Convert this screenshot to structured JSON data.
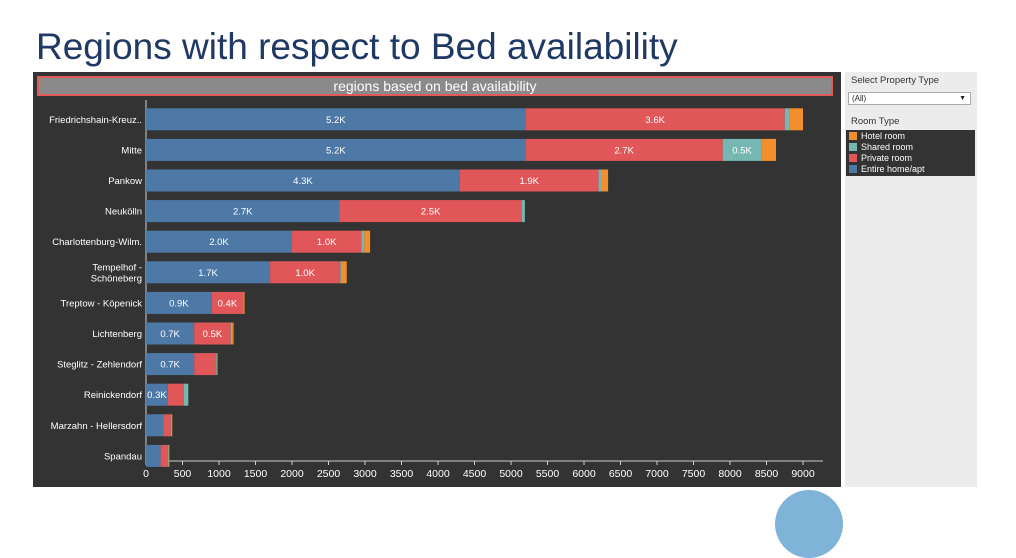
{
  "slide_title": "Regions with respect to Bed availability",
  "filter": {
    "label": "Select Property Type",
    "value": "(All)"
  },
  "legend_title": "Room Type",
  "colors": {
    "entire": "#4e79a7",
    "private": "#e15759",
    "shared": "#76b7b2",
    "hotel": "#f28e2b"
  },
  "chart_data": {
    "type": "bar",
    "orientation": "horizontal",
    "stacked": true,
    "title": "regions based on bed availability",
    "xlim": [
      0,
      9000
    ],
    "xticks": [
      0,
      500,
      1000,
      1500,
      2000,
      2500,
      3000,
      3500,
      4000,
      4500,
      5000,
      5500,
      6000,
      6500,
      7000,
      7500,
      8000,
      8500,
      9000
    ],
    "categories": [
      "Friedrichshain-Kreuz..",
      "Mitte",
      "Pankow",
      "Neukölln",
      "Charlottenburg-Wilm.",
      "Tempelhof - Schöneberg",
      "Treptow - Köpenick",
      "Lichtenberg",
      "Steglitz - Zehlendorf",
      "Reinickendorf",
      "Marzahn - Hellersdorf",
      "Spandau"
    ],
    "category_lines": [
      [
        "Friedrichshain-Kreuz.."
      ],
      [
        "Mitte"
      ],
      [
        "Pankow"
      ],
      [
        "Neukölln"
      ],
      [
        "Charlottenburg-Wilm."
      ],
      [
        "Tempelhof -",
        "Schöneberg"
      ],
      [
        "Treptow - Köpenick"
      ],
      [
        "Lichtenberg"
      ],
      [
        "Steglitz - Zehlendorf"
      ],
      [
        "Reinickendorf"
      ],
      [
        "Marzahn - Hellersdorf"
      ],
      [
        "Spandau"
      ]
    ],
    "legend": [
      "Hotel room",
      "Shared room",
      "Private room",
      "Entire home/apt"
    ],
    "series": [
      {
        "name": "Entire home/apt",
        "values": [
          5200,
          5200,
          4300,
          2650,
          2000,
          1700,
          900,
          660,
          660,
          300,
          240,
          200
        ],
        "labels": [
          "5.2K",
          "5.2K",
          "4.3K",
          "2.7K",
          "2.0K",
          "1.7K",
          "0.9K",
          "0.7K",
          "0.7K",
          "0.3K",
          "",
          ""
        ]
      },
      {
        "name": "Private room",
        "values": [
          3550,
          2700,
          1900,
          2500,
          950,
          960,
          430,
          500,
          300,
          220,
          100,
          100
        ],
        "labels": [
          "3.6K",
          "2.7K",
          "1.9K",
          "2.5K",
          "1.0K",
          "1.0K",
          "0.4K",
          "0.5K",
          "",
          "",
          "",
          ""
        ]
      },
      {
        "name": "Shared room",
        "values": [
          70,
          530,
          40,
          40,
          40,
          10,
          10,
          20,
          10,
          60,
          10,
          10
        ],
        "labels": [
          "",
          "0.5K",
          "",
          "",
          "",
          "",
          "",
          "",
          "",
          "",
          "",
          ""
        ]
      },
      {
        "name": "Hotel room",
        "values": [
          180,
          200,
          90,
          0,
          80,
          80,
          10,
          20,
          10,
          0,
          10,
          10
        ],
        "labels": [
          "",
          "",
          "",
          "",
          "",
          "",
          "",
          "",
          "",
          "",
          "",
          ""
        ]
      }
    ]
  }
}
